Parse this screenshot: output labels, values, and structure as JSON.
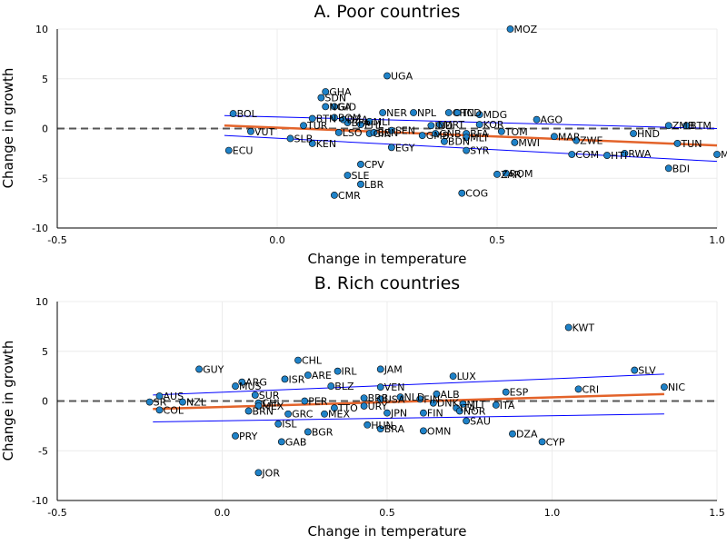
{
  "chart_data": [
    {
      "type": "scatter",
      "title": "A. Poor countries",
      "xlabel": "Change in temperature",
      "ylabel": "Change in growth",
      "xlim": [
        -0.5,
        1.0
      ],
      "ylim": [
        -10,
        10
      ],
      "xticks": [
        "-0.5",
        "0.0",
        "0.5",
        "1.0"
      ],
      "yticks": [
        "-10",
        "-5",
        "0",
        "5",
        "10"
      ],
      "reference_line_y": 0,
      "grid": true,
      "legend": "none",
      "colors": {
        "points": "#1f82c8",
        "fit": "#e3632a",
        "ci": "#0000ff",
        "reference": "#555555"
      },
      "fit": {
        "x": [
          -0.12,
          1.0
        ],
        "y": [
          0.3,
          -1.7
        ]
      },
      "ci_upper": {
        "x": [
          -0.12,
          1.0
        ],
        "y": [
          1.3,
          0.0
        ]
      },
      "ci_lower": {
        "x": [
          -0.12,
          1.0
        ],
        "y": [
          -0.7,
          -3.3
        ]
      },
      "points": [
        {
          "label": "MOZ",
          "x": 0.53,
          "y": 10.0
        },
        {
          "label": "UGA",
          "x": 0.25,
          "y": 5.3
        },
        {
          "label": "GHA",
          "x": 0.11,
          "y": 3.7
        },
        {
          "label": "SDN",
          "x": 0.1,
          "y": 3.1
        },
        {
          "label": "NGA",
          "x": 0.11,
          "y": 2.2
        },
        {
          "label": "GID",
          "x": 0.13,
          "y": 2.2
        },
        {
          "label": "NER",
          "x": 0.24,
          "y": 1.6
        },
        {
          "label": "NPL",
          "x": 0.31,
          "y": 1.6
        },
        {
          "label": "CHN",
          "x": 0.39,
          "y": 1.6
        },
        {
          "label": "TCD",
          "x": 0.41,
          "y": 1.6
        },
        {
          "label": "MDG",
          "x": 0.46,
          "y": 1.4
        },
        {
          "label": "BOL",
          "x": -0.1,
          "y": 1.5
        },
        {
          "label": "BTN",
          "x": 0.08,
          "y": 1.0
        },
        {
          "label": "BOM",
          "x": 0.13,
          "y": 1.1
        },
        {
          "label": "TUR",
          "x": 0.06,
          "y": 0.3
        },
        {
          "label": "BFA",
          "x": 0.16,
          "y": 0.6
        },
        {
          "label": "PHL",
          "x": 0.19,
          "y": 0.4
        },
        {
          "label": "MLI",
          "x": 0.21,
          "y": 0.7
        },
        {
          "label": "DZA",
          "x": 0.15,
          "y": 0.9
        },
        {
          "label": "MRT",
          "x": 0.37,
          "y": 0.4
        },
        {
          "label": "IND",
          "x": 0.35,
          "y": 0.3
        },
        {
          "label": "KOR",
          "x": 0.46,
          "y": 0.4
        },
        {
          "label": "AGO",
          "x": 0.59,
          "y": 0.9
        },
        {
          "label": "ZMB",
          "x": 0.89,
          "y": 0.3
        },
        {
          "label": "BTM",
          "x": 0.93,
          "y": 0.3
        },
        {
          "label": "VUT",
          "x": -0.06,
          "y": -0.3
        },
        {
          "label": "LSO",
          "x": 0.14,
          "y": -0.4
        },
        {
          "label": "GIN",
          "x": 0.21,
          "y": -0.5
        },
        {
          "label": "BEN",
          "x": 0.22,
          "y": -0.4
        },
        {
          "label": "SEN",
          "x": 0.26,
          "y": -0.2
        },
        {
          "label": "GMB",
          "x": 0.33,
          "y": -0.7
        },
        {
          "label": "GNB",
          "x": 0.36,
          "y": -0.5
        },
        {
          "label": "BFA",
          "x": 0.43,
          "y": -0.5
        },
        {
          "label": "TOM",
          "x": 0.51,
          "y": -0.3
        },
        {
          "label": "MLT",
          "x": 0.43,
          "y": -0.9
        },
        {
          "label": "SLB",
          "x": 0.03,
          "y": -1.0
        },
        {
          "label": "KEN",
          "x": 0.08,
          "y": -1.5
        },
        {
          "label": "BDN",
          "x": 0.38,
          "y": -1.3
        },
        {
          "label": "EGY",
          "x": 0.26,
          "y": -1.9
        },
        {
          "label": "SYR",
          "x": 0.43,
          "y": -2.2
        },
        {
          "label": "MWI",
          "x": 0.54,
          "y": -1.4
        },
        {
          "label": "MAR",
          "x": 0.63,
          "y": -0.8
        },
        {
          "label": "ZWE",
          "x": 0.68,
          "y": -1.2
        },
        {
          "label": "HND",
          "x": 0.81,
          "y": -0.5
        },
        {
          "label": "TUN",
          "x": 0.91,
          "y": -1.5
        },
        {
          "label": "ECU",
          "x": -0.11,
          "y": -2.2
        },
        {
          "label": "COM",
          "x": 0.67,
          "y": -2.6
        },
        {
          "label": "HTI",
          "x": 0.75,
          "y": -2.7
        },
        {
          "label": "RWA",
          "x": 0.79,
          "y": -2.5
        },
        {
          "label": "MMR",
          "x": 1.0,
          "y": -2.6
        },
        {
          "label": "BDI",
          "x": 0.89,
          "y": -4.0
        },
        {
          "label": "CPV",
          "x": 0.19,
          "y": -3.6
        },
        {
          "label": "SLE",
          "x": 0.16,
          "y": -4.7
        },
        {
          "label": "LBR",
          "x": 0.19,
          "y": -5.6
        },
        {
          "label": "CMR",
          "x": 0.13,
          "y": -6.7
        },
        {
          "label": "ZAR",
          "x": 0.5,
          "y": -4.6
        },
        {
          "label": "ROM",
          "x": 0.52,
          "y": -4.5
        },
        {
          "label": "COG",
          "x": 0.42,
          "y": -6.5
        }
      ]
    },
    {
      "type": "scatter",
      "title": "B. Rich countries",
      "xlabel": "Change in temperature",
      "ylabel": "Change in growth",
      "xlim": [
        -0.5,
        1.5
      ],
      "ylim": [
        -10,
        10
      ],
      "xticks": [
        "-0.5",
        "0.0",
        "0.5",
        "1.0",
        "1.5"
      ],
      "yticks": [
        "-10",
        "-5",
        "0",
        "5",
        "10"
      ],
      "reference_line_y": 0,
      "grid": true,
      "legend": "none",
      "colors": {
        "points": "#1f82c8",
        "fit": "#e3632a",
        "ci": "#0000ff",
        "reference": "#555555"
      },
      "fit": {
        "x": [
          -0.21,
          1.34
        ],
        "y": [
          -0.8,
          0.7
        ]
      },
      "ci_upper": {
        "x": [
          -0.21,
          1.34
        ],
        "y": [
          0.6,
          2.7
        ]
      },
      "ci_lower": {
        "x": [
          -0.21,
          1.34
        ],
        "y": [
          -2.1,
          -1.3
        ]
      },
      "points": [
        {
          "label": "KWT",
          "x": 1.05,
          "y": 7.4
        },
        {
          "label": "SLV",
          "x": 1.25,
          "y": 3.1
        },
        {
          "label": "NIC",
          "x": 1.34,
          "y": 1.4
        },
        {
          "label": "CRI",
          "x": 1.08,
          "y": 1.2
        },
        {
          "label": "ESP",
          "x": 0.86,
          "y": 0.9
        },
        {
          "label": "GUY",
          "x": -0.07,
          "y": 3.2
        },
        {
          "label": "CHL",
          "x": 0.23,
          "y": 4.1
        },
        {
          "label": "IRL",
          "x": 0.35,
          "y": 3.0
        },
        {
          "label": "JAM",
          "x": 0.48,
          "y": 3.2
        },
        {
          "label": "ARE",
          "x": 0.26,
          "y": 2.6
        },
        {
          "label": "LUX",
          "x": 0.7,
          "y": 2.5
        },
        {
          "label": "ISR",
          "x": 0.19,
          "y": 2.2
        },
        {
          "label": "ARG",
          "x": 0.06,
          "y": 1.9
        },
        {
          "label": "MUS",
          "x": 0.04,
          "y": 1.5
        },
        {
          "label": "BLZ",
          "x": 0.33,
          "y": 1.5
        },
        {
          "label": "VEN",
          "x": 0.48,
          "y": 1.4
        },
        {
          "label": "SUR",
          "x": 0.1,
          "y": 0.6
        },
        {
          "label": "AUS",
          "x": -0.19,
          "y": 0.5
        },
        {
          "label": "NZL",
          "x": -0.12,
          "y": -0.1
        },
        {
          "label": "SR",
          "x": -0.22,
          "y": -0.1
        },
        {
          "label": "COL",
          "x": -0.19,
          "y": -0.9
        },
        {
          "label": "PER",
          "x": 0.25,
          "y": 0.0
        },
        {
          "label": "CHI",
          "x": 0.11,
          "y": -0.2
        },
        {
          "label": "MEX",
          "x": 0.11,
          "y": -0.5
        },
        {
          "label": "BRN",
          "x": 0.08,
          "y": -1.0
        },
        {
          "label": "GRC",
          "x": 0.2,
          "y": -1.3
        },
        {
          "label": "TTO",
          "x": 0.34,
          "y": -0.7
        },
        {
          "label": "URY",
          "x": 0.43,
          "y": -0.5
        },
        {
          "label": "MEX",
          "x": 0.31,
          "y": -1.3
        },
        {
          "label": "BRB",
          "x": 0.43,
          "y": 0.3
        },
        {
          "label": "USA",
          "x": 0.48,
          "y": 0.2
        },
        {
          "label": "NLD",
          "x": 0.54,
          "y": 0.4
        },
        {
          "label": "ALB",
          "x": 0.65,
          "y": 0.7
        },
        {
          "label": "FIN",
          "x": 0.6,
          "y": 0.2
        },
        {
          "label": "DNK",
          "x": 0.64,
          "y": -0.2
        },
        {
          "label": "JPN",
          "x": 0.5,
          "y": -1.2
        },
        {
          "label": "FIN",
          "x": 0.61,
          "y": -1.2
        },
        {
          "label": "ITA",
          "x": 0.71,
          "y": -0.7
        },
        {
          "label": "MLT",
          "x": 0.73,
          "y": -0.3
        },
        {
          "label": "NOR",
          "x": 0.72,
          "y": -1.0
        },
        {
          "label": "ITA",
          "x": 0.83,
          "y": -0.4
        },
        {
          "label": "SAU",
          "x": 0.74,
          "y": -2.0
        },
        {
          "label": "HUN",
          "x": 0.44,
          "y": -2.4
        },
        {
          "label": "BRA",
          "x": 0.48,
          "y": -2.8
        },
        {
          "label": "OMN",
          "x": 0.61,
          "y": -3.0
        },
        {
          "label": "BGR",
          "x": 0.26,
          "y": -3.1
        },
        {
          "label": "ISL",
          "x": 0.17,
          "y": -2.3
        },
        {
          "label": "PRY",
          "x": 0.04,
          "y": -3.5
        },
        {
          "label": "GAB",
          "x": 0.18,
          "y": -4.1
        },
        {
          "label": "DZA",
          "x": 0.88,
          "y": -3.3
        },
        {
          "label": "CYP",
          "x": 0.97,
          "y": -4.1
        },
        {
          "label": "JOR",
          "x": 0.11,
          "y": -7.2
        }
      ]
    }
  ]
}
